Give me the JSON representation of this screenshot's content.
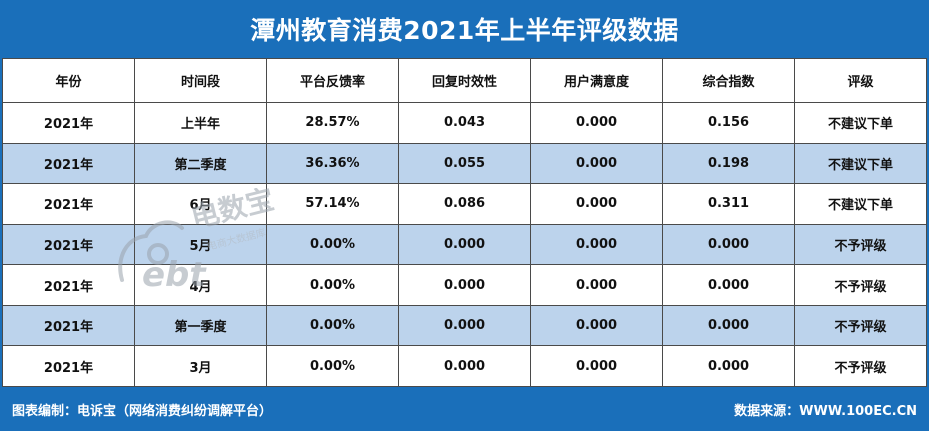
{
  "title": "潭州教育消费2021年上半年评级数据",
  "table": {
    "headers": [
      "年份",
      "时间段",
      "平台反馈率",
      "回复时效性",
      "用户满意度",
      "综合指数",
      "评级"
    ],
    "rows": [
      [
        "2021年",
        "上半年",
        "28.57%",
        "0.043",
        "0.000",
        "0.156",
        "不建议下单"
      ],
      [
        "2021年",
        "第二季度",
        "36.36%",
        "0.055",
        "0.000",
        "0.198",
        "不建议下单"
      ],
      [
        "2021年",
        "6月",
        "57.14%",
        "0.086",
        "0.000",
        "0.311",
        "不建议下单"
      ],
      [
        "2021年",
        "5月",
        "0.00%",
        "0.000",
        "0.000",
        "0.000",
        "不予评级"
      ],
      [
        "2021年",
        "4月",
        "0.00%",
        "0.000",
        "0.000",
        "0.000",
        "不予评级"
      ],
      [
        "2021年",
        "第一季度",
        "0.00%",
        "0.000",
        "0.000",
        "0.000",
        "不予评级"
      ],
      [
        "2021年",
        "3月",
        "0.00%",
        "0.000",
        "0.000",
        "0.000",
        "不予评级"
      ]
    ]
  },
  "watermark": {
    "brand": "电数宝",
    "logo_text": "ebt",
    "tagline": "电商大数据库"
  },
  "footer": {
    "left": "图表编制：电诉宝（网络消费纠纷调解平台）",
    "right": "数据来源：WWW.100EC.CN"
  },
  "colors": {
    "header_bg": "#1a6fba",
    "row_shade": "#bcd3ec",
    "row_plain": "#ffffff",
    "text": "#111111"
  }
}
